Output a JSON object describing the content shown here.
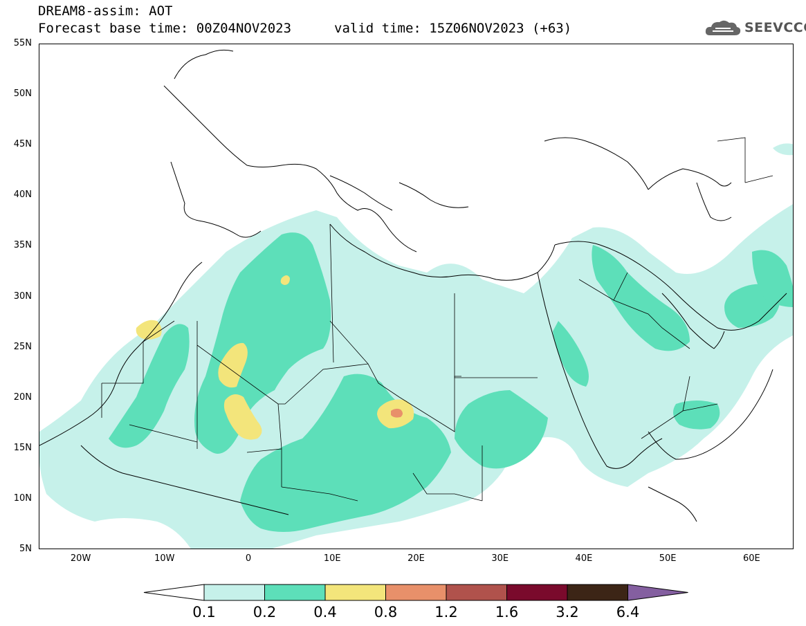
{
  "header": {
    "title_line1": "DREAM8-assim: AOT",
    "title_line2": "Forecast base time: 00Z04NOV2023",
    "valid_time": "valid time: 15Z06NOV2023 (+63)",
    "logo_text": "SEEVCCC",
    "logo_icon": "cloud-icon"
  },
  "map": {
    "lat_labels": [
      "55N",
      "50N",
      "45N",
      "40N",
      "35N",
      "30N",
      "25N",
      "20N",
      "15N",
      "10N",
      "5N"
    ],
    "lon_labels": [
      "20W",
      "10W",
      "0",
      "10E",
      "20E",
      "30E",
      "40E",
      "50E",
      "60E"
    ],
    "lon_range": [
      -25,
      65
    ],
    "lat_range": [
      5,
      55
    ]
  },
  "legend": {
    "levels": [
      "0.1",
      "0.2",
      "0.4",
      "0.8",
      "1.2",
      "1.6",
      "3.2",
      "6.4"
    ],
    "colors": {
      "below": "#ffffff",
      "b1": "#c6f1ea",
      "b2": "#5ddfb9",
      "b3": "#f3e57b",
      "b4": "#e8906a",
      "b5": "#b0524c",
      "b6": "#7a0a2c",
      "b7": "#3c2516",
      "above": "#845fa0"
    }
  }
}
